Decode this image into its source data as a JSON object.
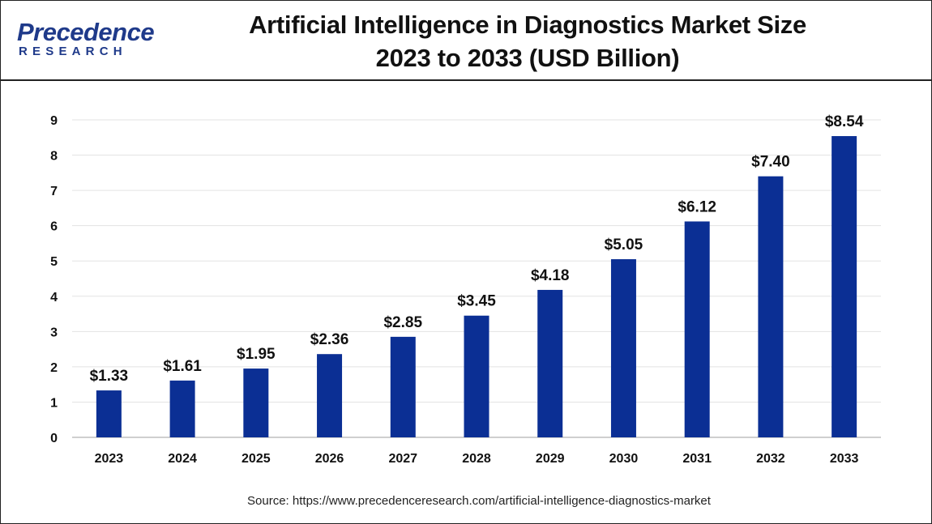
{
  "header": {
    "logo_word": "Precedence",
    "logo_sub": "RESEARCH",
    "title_line1": "Artificial Intelligence in Diagnostics Market Size",
    "title_line2": "2023 to 2033 (USD Billion)"
  },
  "source": "Source: https://www.precedenceresearch.com/artificial-intelligence-diagnostics-market",
  "colors": {
    "bar": "#0b2f94",
    "grid": "#e3e3e3",
    "axis": "#bfbfbf",
    "text": "#111111"
  },
  "chart_data": {
    "type": "bar",
    "title": "Artificial Intelligence in Diagnostics Market Size 2023 to 2033 (USD Billion)",
    "xlabel": "",
    "ylabel": "",
    "categories": [
      "2023",
      "2024",
      "2025",
      "2026",
      "2027",
      "2028",
      "2029",
      "2030",
      "2031",
      "2032",
      "2033"
    ],
    "values": [
      1.33,
      1.61,
      1.95,
      2.36,
      2.85,
      3.45,
      4.18,
      5.05,
      6.12,
      7.4,
      8.54
    ],
    "data_labels": [
      "$1.33",
      "$1.61",
      "$1.95",
      "$2.36",
      "$2.85",
      "$3.45",
      "$4.18",
      "$5.05",
      "$6.12",
      "$7.40",
      "$8.54"
    ],
    "yticks": [
      "0",
      "1",
      "2",
      "3",
      "4",
      "5",
      "6",
      "7",
      "8",
      "9"
    ],
    "ylim": [
      0,
      9
    ],
    "grid": true,
    "legend": "none"
  }
}
